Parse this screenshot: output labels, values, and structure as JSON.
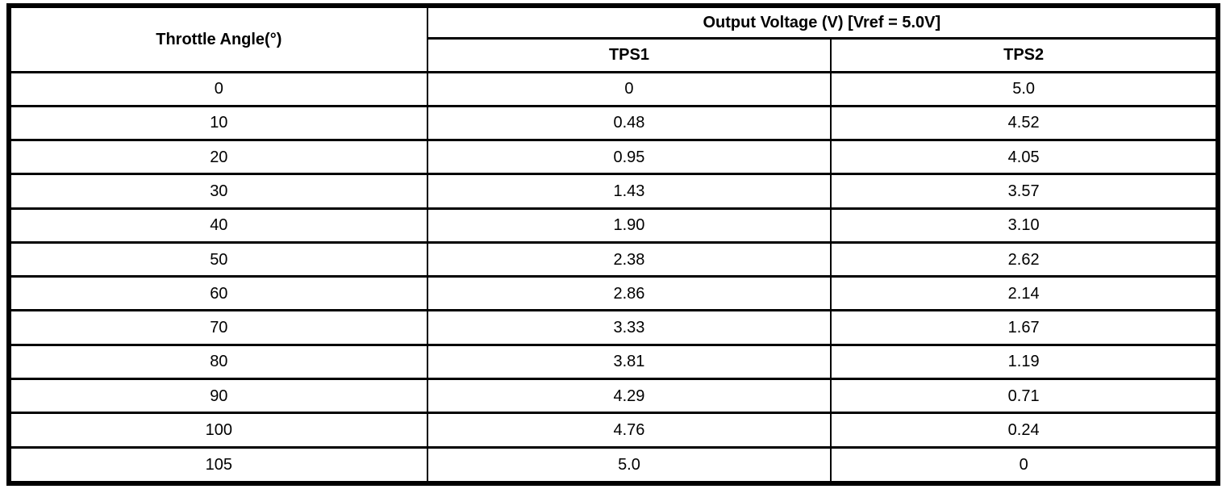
{
  "colors": {
    "border": "#000000",
    "background": "#ffffff",
    "text": "#000000"
  },
  "table": {
    "angle_header": "Throttle Angle(°)",
    "group_header": "Output Voltage (V) [Vref = 5.0V]",
    "sub_headers": [
      "TPS1",
      "TPS2"
    ],
    "rows": [
      {
        "angle": "0",
        "tps1": "0",
        "tps2": "5.0"
      },
      {
        "angle": "10",
        "tps1": "0.48",
        "tps2": "4.52"
      },
      {
        "angle": "20",
        "tps1": "0.95",
        "tps2": "4.05"
      },
      {
        "angle": "30",
        "tps1": "1.43",
        "tps2": "3.57"
      },
      {
        "angle": "40",
        "tps1": "1.90",
        "tps2": "3.10"
      },
      {
        "angle": "50",
        "tps1": "2.38",
        "tps2": "2.62"
      },
      {
        "angle": "60",
        "tps1": "2.86",
        "tps2": "2.14"
      },
      {
        "angle": "70",
        "tps1": "3.33",
        "tps2": "1.67"
      },
      {
        "angle": "80",
        "tps1": "3.81",
        "tps2": "1.19"
      },
      {
        "angle": "90",
        "tps1": "4.29",
        "tps2": "0.71"
      },
      {
        "angle": "100",
        "tps1": "4.76",
        "tps2": "0.24"
      },
      {
        "angle": "105",
        "tps1": "5.0",
        "tps2": "0"
      }
    ]
  }
}
